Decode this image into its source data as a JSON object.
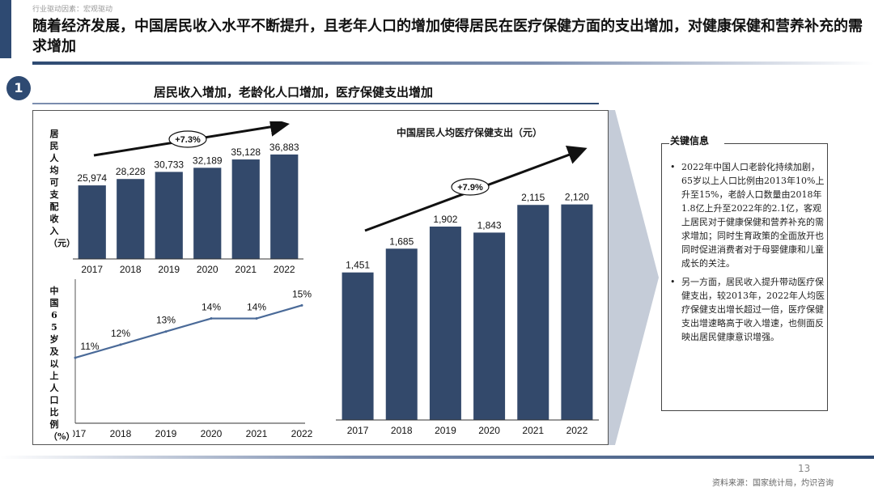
{
  "header": {
    "breadcrumb": "行业驱动因素：宏观驱动",
    "headline": "随着经济发展，中国居民收入水平不断提升，且老年人口的增加使得居民在医疗保健方面的支出增加，对健康保健和营养补充的需求增加"
  },
  "section": {
    "step_number": "1",
    "title": "居民收入增加，老龄化人口增加，医疗保健支出增加"
  },
  "colors": {
    "bar": "#33496b",
    "line": "#4a6a98",
    "accent": "#2e4a72"
  },
  "chart_data": [
    {
      "type": "bar",
      "title": "",
      "ylabel": "居民人均可支配收入（元）",
      "categories": [
        "2017",
        "2018",
        "2019",
        "2020",
        "2021",
        "2022"
      ],
      "values": [
        25974,
        28228,
        30733,
        32189,
        35128,
        36883
      ],
      "value_labels": [
        "25,974",
        "28,228",
        "30,733",
        "32,189",
        "35,128",
        "36,883"
      ],
      "growth_label": "+7.3%",
      "ylim": [
        0,
        40000
      ]
    },
    {
      "type": "line",
      "title": "",
      "ylabel": "中国65岁及以上人口比例（%）",
      "categories": [
        "2017",
        "2018",
        "2019",
        "2020",
        "2021",
        "2022"
      ],
      "values": [
        11,
        12,
        13,
        14,
        14,
        15
      ],
      "value_labels": [
        "11%",
        "12%",
        "13%",
        "14%",
        "14%",
        "15%"
      ],
      "ylim": [
        6,
        17
      ]
    },
    {
      "type": "bar",
      "title": "中国居民人均医疗保健支出（元）",
      "categories": [
        "2017",
        "2018",
        "2019",
        "2020",
        "2021",
        "2022"
      ],
      "values": [
        1451,
        1685,
        1902,
        1843,
        2115,
        2120
      ],
      "value_labels": [
        "1,451",
        "1,685",
        "1,902",
        "1,843",
        "2,115",
        "2,120"
      ],
      "growth_label": "+7.9%",
      "ylim": [
        0,
        2300
      ]
    }
  ],
  "info": {
    "title": "关键信息",
    "bullets": [
      "2022年中国人口老龄化持续加剧，65岁以上人口比例由2013年10%上升至15%，老龄人口数量由2018年1.8亿上升至2022年的2.1亿，客观上居民对于健康保健和营养补充的需求增加；同时生育政策的全面放开也同时促进消费者对于母婴健康和儿童成长的关注。",
      "另一方面，居民收入提升带动医疗保健支出，较2013年，2022年人均医疗保健支出增长超过一倍，医疗保健支出增速略高于收入增速，也侧面反映出居民健康意识增强。"
    ]
  },
  "footer": {
    "page_number": "13",
    "source": "资料来源：国家统计局，灼识咨询"
  }
}
